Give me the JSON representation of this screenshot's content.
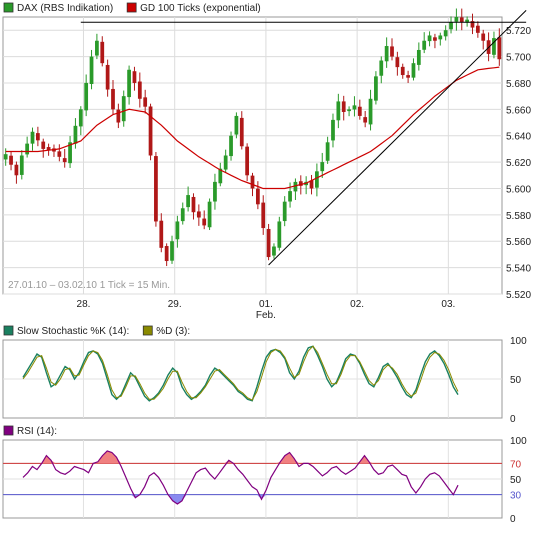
{
  "chart_data": [
    {
      "type": "candlestick",
      "legend": [
        {
          "name": "DAX (RBS Indikation)",
          "color": "#2a9a2a"
        },
        {
          "name": "GD 100 Ticks (exponential)",
          "color": "#cc0000"
        }
      ],
      "info_text": "27.01.10 – 03.02.10   1 Tick = 15 Min.",
      "x_labels": [
        {
          "label": "28.",
          "i": 15
        },
        {
          "label": "29.",
          "i": 32
        },
        {
          "label": "01.",
          "sub": "Feb.",
          "i": 49
        },
        {
          "label": "02.",
          "sub": "",
          "i": 66
        },
        {
          "label": "03.",
          "i": 83
        }
      ],
      "y_ticks": [
        "5.720",
        "5.700",
        "5.680",
        "5.660",
        "5.640",
        "5.620",
        "5.600",
        "5.580",
        "5.560",
        "5.540",
        "5.520"
      ],
      "ylim": [
        5520,
        5730
      ],
      "candle_count": 93,
      "close_path": [
        [
          0,
          5626
        ],
        [
          2,
          5610
        ],
        [
          3,
          5625
        ],
        [
          5,
          5643
        ],
        [
          7,
          5630
        ],
        [
          9,
          5628
        ],
        [
          11,
          5620
        ],
        [
          12,
          5635
        ],
        [
          14,
          5660
        ],
        [
          16,
          5700
        ],
        [
          17,
          5712
        ],
        [
          18,
          5695
        ],
        [
          19,
          5675
        ],
        [
          20,
          5660
        ],
        [
          21,
          5650
        ],
        [
          22,
          5670
        ],
        [
          23,
          5690
        ],
        [
          24,
          5680
        ],
        [
          25,
          5668
        ],
        [
          26,
          5662
        ],
        [
          27,
          5625
        ],
        [
          28,
          5575
        ],
        [
          29,
          5555
        ],
        [
          30,
          5545
        ],
        [
          31,
          5560
        ],
        [
          32,
          5575
        ],
        [
          33,
          5585
        ],
        [
          34,
          5595
        ],
        [
          35,
          5582
        ],
        [
          36,
          5578
        ],
        [
          37,
          5572
        ],
        [
          38,
          5590
        ],
        [
          39,
          5605
        ],
        [
          40,
          5615
        ],
        [
          41,
          5625
        ],
        [
          42,
          5640
        ],
        [
          43,
          5655
        ],
        [
          44,
          5632
        ],
        [
          45,
          5610
        ],
        [
          46,
          5600
        ],
        [
          47,
          5588
        ],
        [
          48,
          5570
        ],
        [
          49,
          5548
        ],
        [
          50,
          5556
        ],
        [
          51,
          5575
        ],
        [
          52,
          5590
        ],
        [
          53,
          5598
        ],
        [
          54,
          5605
        ],
        [
          55,
          5602
        ],
        [
          56,
          5605
        ],
        [
          57,
          5600
        ],
        [
          58,
          5613
        ],
        [
          59,
          5620
        ],
        [
          60,
          5635
        ],
        [
          61,
          5652
        ],
        [
          62,
          5666
        ],
        [
          63,
          5658
        ],
        [
          64,
          5660
        ],
        [
          65,
          5663
        ],
        [
          66,
          5655
        ],
        [
          67,
          5650
        ],
        [
          68,
          5668
        ],
        [
          69,
          5685
        ],
        [
          70,
          5697
        ],
        [
          71,
          5708
        ],
        [
          72,
          5700
        ],
        [
          73,
          5692
        ],
        [
          74,
          5686
        ],
        [
          75,
          5684
        ],
        [
          76,
          5695
        ],
        [
          77,
          5705
        ],
        [
          78,
          5712
        ],
        [
          79,
          5716
        ],
        [
          80,
          5712
        ],
        [
          81,
          5716
        ],
        [
          82,
          5720
        ],
        [
          83,
          5726
        ],
        [
          84,
          5730
        ],
        [
          85,
          5726
        ],
        [
          86,
          5728
        ],
        [
          87,
          5722
        ],
        [
          88,
          5718
        ],
        [
          89,
          5712
        ],
        [
          90,
          5702
        ],
        [
          91,
          5714
        ],
        [
          92,
          5698
        ]
      ],
      "gd100": [
        [
          0,
          5628
        ],
        [
          6,
          5628
        ],
        [
          10,
          5630
        ],
        [
          14,
          5636
        ],
        [
          17,
          5648
        ],
        [
          20,
          5656
        ],
        [
          23,
          5660
        ],
        [
          26,
          5658
        ],
        [
          29,
          5648
        ],
        [
          32,
          5636
        ],
        [
          36,
          5624
        ],
        [
          40,
          5614
        ],
        [
          44,
          5606
        ],
        [
          48,
          5600
        ],
        [
          52,
          5600
        ],
        [
          56,
          5604
        ],
        [
          60,
          5612
        ],
        [
          64,
          5620
        ],
        [
          68,
          5628
        ],
        [
          72,
          5640
        ],
        [
          76,
          5656
        ],
        [
          80,
          5670
        ],
        [
          84,
          5682
        ],
        [
          88,
          5690
        ],
        [
          92,
          5692
        ]
      ],
      "resistance_line": [
        [
          14,
          5726
        ],
        [
          97,
          5726
        ]
      ],
      "trend_line": [
        [
          49,
          5542
        ],
        [
          97,
          5735
        ]
      ]
    },
    {
      "type": "line",
      "legend": [
        {
          "name": "Slow Stochastic %K (14):",
          "color": "#1a8060"
        },
        {
          "name": "%D (3):",
          "color": "#8a8a00"
        }
      ],
      "y_ticks": [
        "100",
        "50",
        "0"
      ],
      "ylim": [
        0,
        100
      ],
      "series": [
        {
          "name": "Slow Stochastic %K (14):",
          "values": [
            52,
            62,
            72,
            82,
            78,
            58,
            40,
            44,
            55,
            66,
            62,
            50,
            58,
            72,
            84,
            86,
            82,
            70,
            50,
            30,
            24,
            30,
            44,
            58,
            52,
            40,
            28,
            22,
            26,
            32,
            42,
            55,
            64,
            58,
            40,
            30,
            24,
            28,
            34,
            42,
            55,
            64,
            60,
            54,
            48,
            42,
            34,
            30,
            24,
            22,
            40,
            60,
            78,
            86,
            88,
            84,
            76,
            58,
            50,
            60,
            78,
            90,
            92,
            80,
            66,
            50,
            40,
            46,
            60,
            76,
            82,
            80,
            70,
            56,
            44,
            40,
            52,
            66,
            70,
            62,
            52,
            40,
            30,
            26,
            36,
            55,
            72,
            82,
            86,
            80,
            70,
            56,
            40,
            30
          ]
        },
        {
          "name": "%D (3):",
          "values": [
            50,
            58,
            68,
            78,
            80,
            64,
            46,
            42,
            50,
            62,
            64,
            54,
            55,
            68,
            80,
            86,
            84,
            74,
            56,
            36,
            26,
            28,
            40,
            54,
            54,
            44,
            32,
            24,
            24,
            30,
            38,
            50,
            60,
            60,
            46,
            34,
            26,
            26,
            32,
            40,
            50,
            60,
            62,
            56,
            50,
            44,
            36,
            32,
            26,
            23,
            34,
            52,
            72,
            84,
            88,
            86,
            78,
            64,
            52,
            56,
            72,
            86,
            92,
            84,
            70,
            56,
            44,
            44,
            56,
            72,
            80,
            80,
            72,
            60,
            48,
            42,
            48,
            62,
            68,
            64,
            56,
            44,
            34,
            28,
            32,
            48,
            66,
            78,
            84,
            82,
            74,
            62,
            46,
            34
          ]
        }
      ]
    },
    {
      "type": "line",
      "legend": [
        {
          "name": "RSI (14):",
          "color": "#800080"
        }
      ],
      "y_ticks": [
        "100",
        "70",
        "50",
        "30",
        "0"
      ],
      "ylim": [
        0,
        100
      ],
      "bands": [
        30,
        70
      ],
      "series": [
        {
          "name": "RSI (14):",
          "values": [
            52,
            58,
            66,
            62,
            70,
            80,
            74,
            62,
            58,
            56,
            60,
            66,
            64,
            62,
            58,
            70,
            72,
            80,
            86,
            84,
            78,
            66,
            52,
            38,
            26,
            30,
            40,
            54,
            58,
            52,
            42,
            30,
            22,
            18,
            22,
            34,
            46,
            58,
            62,
            64,
            56,
            50,
            58,
            66,
            74,
            70,
            62,
            56,
            48,
            40,
            36,
            24,
            36,
            52,
            62,
            72,
            80,
            84,
            76,
            66,
            70,
            70,
            66,
            60,
            54,
            58,
            64,
            66,
            60,
            56,
            60,
            64,
            72,
            80,
            72,
            62,
            56,
            58,
            66,
            68,
            62,
            56,
            54,
            40,
            32,
            40,
            50,
            56,
            58,
            54,
            46,
            38,
            30,
            42
          ]
        }
      ]
    }
  ]
}
